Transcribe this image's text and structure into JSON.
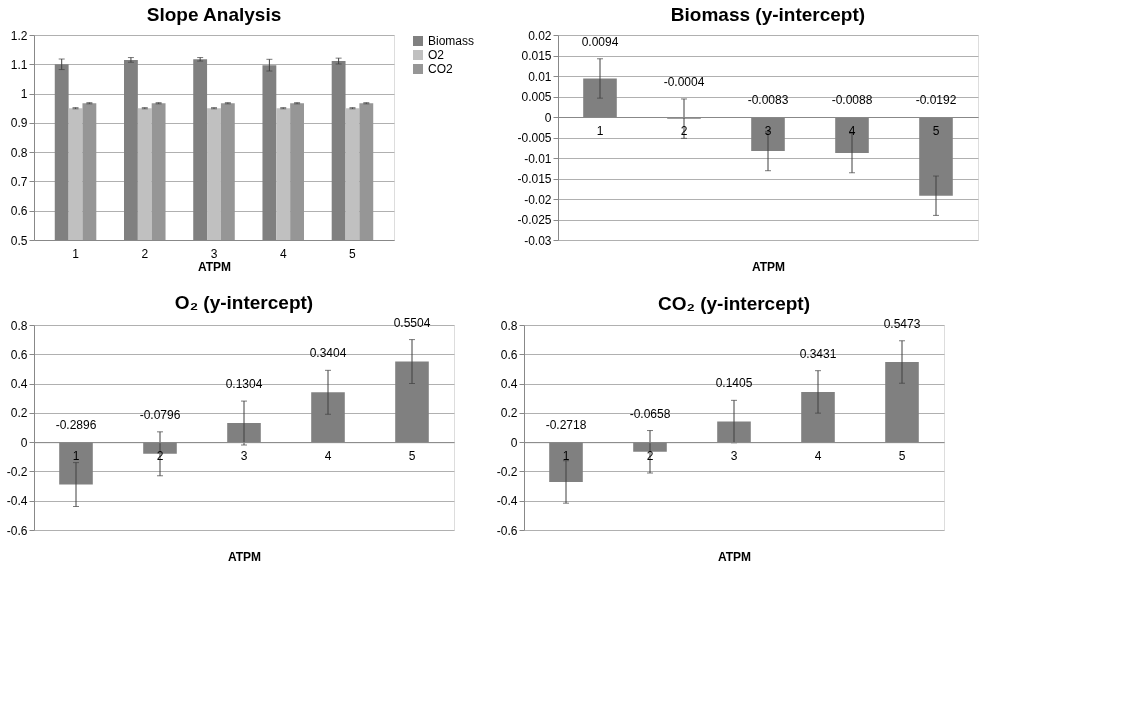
{
  "chart_data": [
    {
      "type": "bar",
      "title": "Slope Analysis",
      "xlabel": "ATPM",
      "categories": [
        "1",
        "2",
        "3",
        "4",
        "5"
      ],
      "ylim": [
        0.5,
        1.2
      ],
      "yticks": [
        0.5,
        0.6,
        0.7,
        0.8,
        0.9,
        1,
        1.1,
        1.2
      ],
      "grid": "y",
      "legend": "right",
      "series": [
        {
          "name": "Biomass",
          "color": "#808080",
          "values": [
            1.1,
            1.115,
            1.117,
            1.097,
            1.111
          ],
          "errors": [
            0.018,
            0.008,
            0.006,
            0.02,
            0.01
          ]
        },
        {
          "name": "O2",
          "color": "#c0c0c0",
          "values": [
            0.95,
            0.95,
            0.95,
            0.95,
            0.95
          ],
          "errors": [
            0.002,
            0.002,
            0.002,
            0.002,
            0.002
          ]
        },
        {
          "name": "CO2",
          "color": "#969696",
          "values": [
            0.967,
            0.967,
            0.967,
            0.967,
            0.967
          ],
          "errors": [
            0.002,
            0.002,
            0.002,
            0.002,
            0.002
          ]
        }
      ]
    },
    {
      "type": "bar",
      "title": "Biomass (y-intercept)",
      "xlabel": "ATPM",
      "categories": [
        "1",
        "2",
        "3",
        "4",
        "5"
      ],
      "ylim": [
        -0.03,
        0.02
      ],
      "yticks": [
        -0.03,
        -0.025,
        -0.02,
        -0.015,
        -0.01,
        -0.005,
        0,
        0.005,
        0.01,
        0.015,
        0.02
      ],
      "grid": "y",
      "data_labels": true,
      "color": "#808080",
      "values": [
        0.0094,
        -0.0004,
        -0.0083,
        -0.0088,
        -0.0192
      ],
      "errors": [
        0.0048,
        0.0048,
        0.0048,
        0.0048,
        0.0048
      ]
    },
    {
      "type": "bar",
      "title": "O₂ (y-intercept)",
      "xlabel": "ATPM",
      "categories": [
        "1",
        "2",
        "3",
        "4",
        "5"
      ],
      "ylim": [
        -0.6,
        0.8
      ],
      "yticks": [
        -0.6,
        -0.4,
        -0.2,
        0,
        0.2,
        0.4,
        0.6,
        0.8
      ],
      "grid": "y",
      "data_labels": true,
      "color": "#808080",
      "values": [
        -0.2896,
        -0.0796,
        0.1304,
        0.3404,
        0.5504
      ],
      "errors": [
        0.15,
        0.15,
        0.15,
        0.15,
        0.15
      ]
    },
    {
      "type": "bar",
      "title": "CO₂ (y-intercept)",
      "xlabel": "ATPM",
      "categories": [
        "1",
        "2",
        "3",
        "4",
        "5"
      ],
      "ylim": [
        -0.6,
        0.8
      ],
      "yticks": [
        -0.6,
        -0.4,
        -0.2,
        0,
        0.2,
        0.4,
        0.6,
        0.8
      ],
      "grid": "y",
      "data_labels": true,
      "color": "#808080",
      "values": [
        -0.2718,
        -0.0658,
        0.1405,
        0.3431,
        0.5473
      ],
      "errors": [
        0.145,
        0.145,
        0.145,
        0.145,
        0.145
      ]
    }
  ]
}
